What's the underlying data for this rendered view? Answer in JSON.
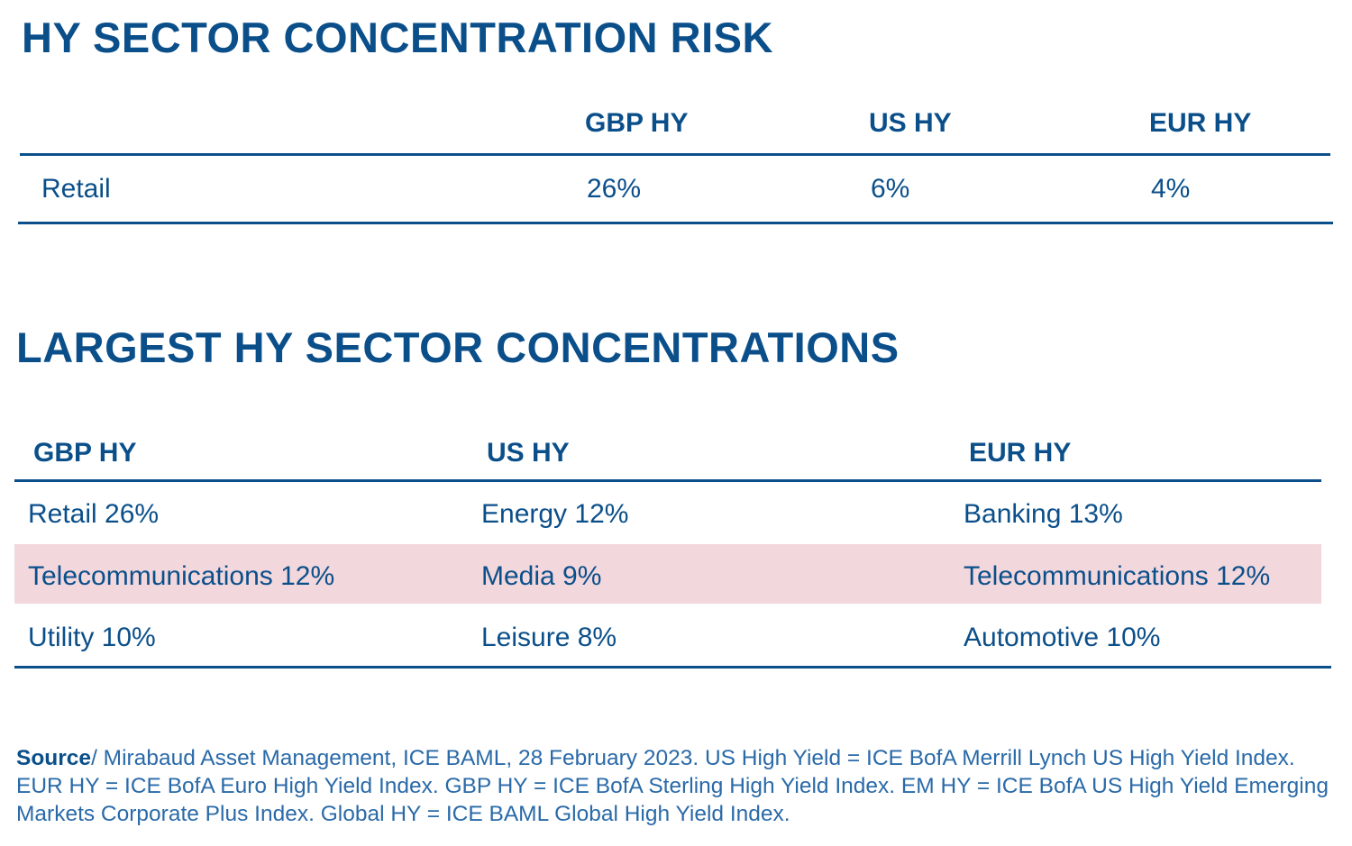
{
  "risk": {
    "title": "HY SECTOR CONCENTRATION RISK",
    "headers": [
      "GBP HY",
      "US HY",
      "EUR HY"
    ],
    "row": {
      "label": "Retail",
      "values": [
        "26%",
        "6%",
        "4%"
      ]
    }
  },
  "largest": {
    "title": "LARGEST HY SECTOR CONCENTRATIONS",
    "headers": [
      "GBP HY",
      "US HY",
      "EUR HY"
    ],
    "rows": [
      [
        "Retail 26%",
        "Energy 12%",
        "Banking 13%"
      ],
      [
        "Telecommunications 12%",
        "Media 9%",
        "Telecommunications 12%"
      ],
      [
        "Utility 10%",
        "Leisure 8%",
        "Automotive 10%"
      ]
    ],
    "highlight_color": "#f2d7dc"
  },
  "source": {
    "label": "Source",
    "text": "/ Mirabaud Asset Management, ICE BAML, 28 February 2023. US High Yield = ICE BofA Merrill Lynch US High Yield Index. EUR HY = ICE BofA Euro High Yield Index. GBP HY = ICE BofA Sterling High Yield Index. EM HY = ICE BofA US High Yield Emerging Markets Corporate Plus Index. Global HY = ICE BAML Global High Yield Index."
  },
  "colors": {
    "accent": "#0b4f8a",
    "highlight": "#f2d7dc"
  }
}
